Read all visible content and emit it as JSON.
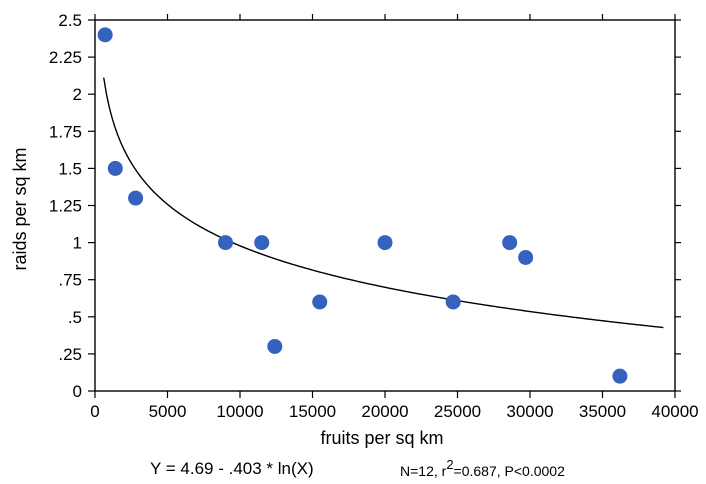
{
  "chart_data": {
    "type": "scatter",
    "title": "",
    "xlabel": "fruits per sq km",
    "ylabel": "raids per sq km",
    "xlim": [
      0,
      40000
    ],
    "ylim": [
      0,
      2.5
    ],
    "x_ticks": [
      0,
      5000,
      10000,
      15000,
      20000,
      25000,
      30000,
      35000,
      40000
    ],
    "x_tick_labels": [
      "0",
      "5000",
      "10000",
      "15000",
      "20000",
      "25000",
      "30000",
      "35000",
      "40000"
    ],
    "y_ticks": [
      0,
      0.25,
      0.5,
      0.75,
      1,
      1.25,
      1.5,
      1.75,
      2,
      2.25,
      2.5
    ],
    "y_tick_labels": [
      "0",
      ".25",
      ".5",
      ".75",
      "1",
      "1.25",
      "1.5",
      "1.75",
      "2",
      "2.25",
      "2.5"
    ],
    "grid": false,
    "points": [
      {
        "x": 700,
        "y": 2.4
      },
      {
        "x": 1400,
        "y": 1.5
      },
      {
        "x": 2800,
        "y": 1.3
      },
      {
        "x": 9000,
        "y": 1.0
      },
      {
        "x": 11500,
        "y": 1.0
      },
      {
        "x": 12400,
        "y": 0.3
      },
      {
        "x": 15500,
        "y": 0.6
      },
      {
        "x": 20000,
        "y": 1.0
      },
      {
        "x": 24700,
        "y": 0.6
      },
      {
        "x": 28600,
        "y": 1.0
      },
      {
        "x": 29700,
        "y": 0.9
      },
      {
        "x": 36200,
        "y": 0.1
      }
    ],
    "fit": {
      "intercept": 4.69,
      "slope": -0.403,
      "x_range": [
        600,
        39200
      ]
    },
    "equation_label": "Y = 4.69 - .403 * ln(X)",
    "stats": {
      "n_part": "N=12, r",
      "superscript": "2",
      "rest": "=0.687, P<0.0002"
    },
    "colors": {
      "point": "#3562bf",
      "line": "#000000",
      "axis": "#000000"
    }
  }
}
